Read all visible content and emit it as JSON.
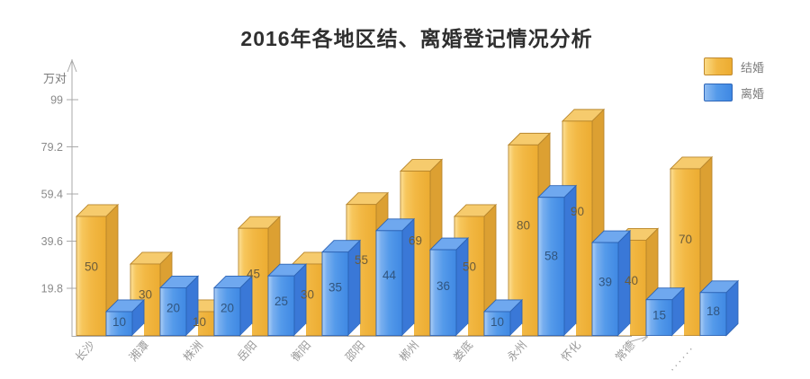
{
  "page": {
    "background": "#ffffff"
  },
  "chart_data": {
    "type": "bar",
    "bar_style": "3d",
    "title": "2016年各地区结、离婚登记情况分析",
    "y_unit_label": "万对",
    "xlabel": "",
    "ylabel": "万对",
    "categories": [
      "长沙",
      "湘潭",
      "株洲",
      "岳阳",
      "衡阳",
      "邵阳",
      "郴州",
      "娄底",
      "永州",
      "怀化",
      "常德",
      "······"
    ],
    "series": [
      {
        "name": "结婚",
        "color": "#F2B844",
        "values": [
          50,
          30,
          10,
          45,
          30,
          55,
          69,
          50,
          80,
          90,
          40,
          70
        ]
      },
      {
        "name": "离婚",
        "color": "#549AEA",
        "values": [
          10,
          20,
          20,
          25,
          35,
          44,
          36,
          10,
          58,
          39,
          15,
          18
        ]
      }
    ],
    "y_ticks": [
      19.8,
      39.6,
      59.4,
      79.2,
      99
    ],
    "ylim": [
      0,
      104.5
    ],
    "grid": false,
    "legend_position": "top-right",
    "axis_arrows": true
  }
}
